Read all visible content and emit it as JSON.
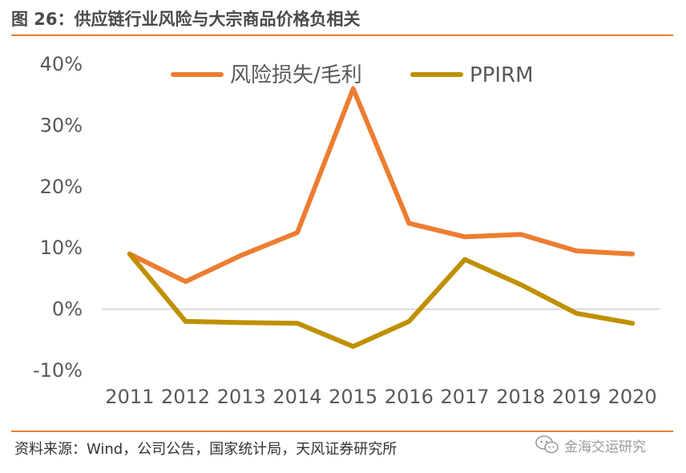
{
  "header": {
    "title": "图 26：供应链行业风险与大宗商品价格负相关"
  },
  "footer": {
    "source": "资料来源：Wind，公司公告，国家统计局，天风证券研究所"
  },
  "watermark": {
    "text": "金海交运研究",
    "icon": "wechat-icon"
  },
  "colors": {
    "accent": "#ed7d31",
    "series1": "#ed7d31",
    "series2": "#bf9000",
    "axis": "#d9d9d9"
  },
  "chart_data": {
    "type": "line",
    "title": "",
    "xlabel": "",
    "ylabel": "",
    "x": [
      "2011",
      "2012",
      "2013",
      "2014",
      "2015",
      "2016",
      "2017",
      "2018",
      "2019",
      "2020"
    ],
    "ylim": [
      -10,
      40
    ],
    "yticks": [
      "40%",
      "30%",
      "20%",
      "10%",
      "0%",
      "-10%"
    ],
    "ytick_values": [
      40,
      30,
      20,
      10,
      0,
      -10
    ],
    "grid": false,
    "legend_position": "top",
    "series": [
      {
        "name": "风险损失/毛利",
        "color": "#ed7d31",
        "values": [
          9.0,
          4.5,
          8.8,
          12.5,
          36.0,
          14.0,
          11.8,
          12.2,
          9.5,
          9.0
        ]
      },
      {
        "name": "PPIRM",
        "color": "#bf9000",
        "values": [
          9.0,
          -2.0,
          -2.2,
          -2.3,
          -6.1,
          -2.0,
          8.1,
          4.0,
          -0.7,
          -2.3
        ]
      }
    ]
  }
}
